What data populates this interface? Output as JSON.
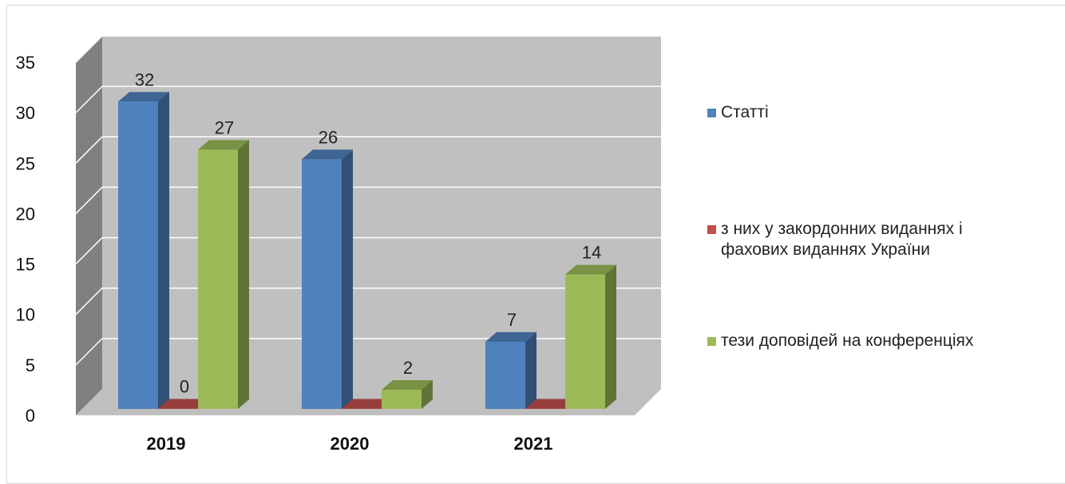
{
  "chart_data": {
    "type": "bar",
    "categories": [
      "2019",
      "2020",
      "2021"
    ],
    "series": [
      {
        "name": "Статті",
        "values": [
          32,
          26,
          7
        ],
        "color": "#4f81bd"
      },
      {
        "name": "з них у закордонних виданнях і\nфахових виданнях України",
        "values": [
          0,
          0,
          0
        ],
        "color": "#c0504d"
      },
      {
        "name": "тези доповідей на конференціях",
        "values": [
          27,
          2,
          14
        ],
        "color": "#9bbb59"
      }
    ],
    "ylim": [
      0,
      35
    ],
    "yticks": [
      "0",
      "5",
      "10",
      "15",
      "20",
      "25",
      "30",
      "35"
    ],
    "data_labels": [
      [
        "32",
        "26",
        "7"
      ],
      [
        "0",
        "",
        ""
      ],
      [
        "27",
        "2",
        "14"
      ]
    ],
    "grid": true,
    "legend_position": "right",
    "style": "3d-clustered-column"
  }
}
